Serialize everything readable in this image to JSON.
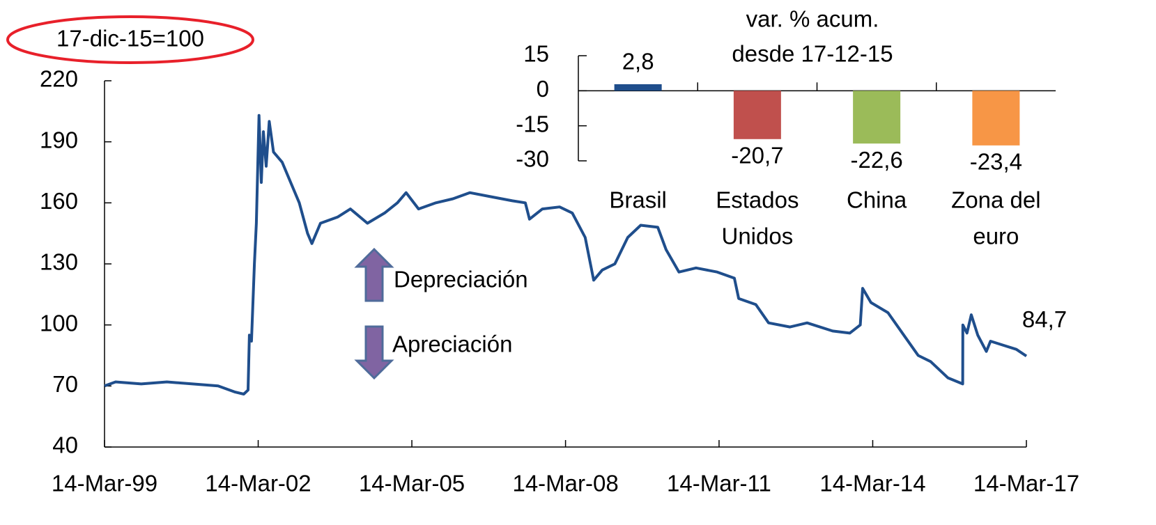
{
  "chart_data": [
    {
      "type": "line",
      "base_note": "17-dic-15=100",
      "arrow_labels": [
        "Depreciación",
        "Apreciación"
      ],
      "end_label": "84,7",
      "color": "#1f4e8c",
      "xlim": [
        "1999-03-14",
        "2017-03-14"
      ],
      "xticks": [
        {
          "value": "1999-03-14",
          "label": "14-Mar-99"
        },
        {
          "value": "2002-03-14",
          "label": "14-Mar-02"
        },
        {
          "value": "2005-03-14",
          "label": "14-Mar-05"
        },
        {
          "value": "2008-03-14",
          "label": "14-Mar-08"
        },
        {
          "value": "2011-03-14",
          "label": "14-Mar-11"
        },
        {
          "value": "2014-03-14",
          "label": "14-Mar-14"
        },
        {
          "value": "2017-03-14",
          "label": "14-Mar-17"
        }
      ],
      "ylim": [
        40,
        220
      ],
      "yticks": [
        40,
        70,
        100,
        130,
        160,
        190,
        220
      ],
      "x": [
        "1999-03-14",
        "1999-06-01",
        "1999-12-01",
        "2000-06-01",
        "2000-12-01",
        "2001-06-01",
        "2001-10-01",
        "2001-12-01",
        "2002-01-01",
        "2002-01-10",
        "2002-01-25",
        "2002-02-15",
        "2002-03-01",
        "2002-03-20",
        "2002-04-05",
        "2002-04-20",
        "2002-05-10",
        "2002-06-01",
        "2002-07-01",
        "2002-09-01",
        "2002-11-01",
        "2003-01-01",
        "2003-03-01",
        "2003-04-01",
        "2003-06-01",
        "2003-10-01",
        "2004-01-01",
        "2004-05-01",
        "2004-09-01",
        "2004-12-01",
        "2005-02-01",
        "2005-05-01",
        "2005-09-01",
        "2006-01-01",
        "2006-05-01",
        "2006-10-01",
        "2007-03-01",
        "2007-06-01",
        "2007-07-01",
        "2007-10-01",
        "2008-02-01",
        "2008-05-01",
        "2008-08-01",
        "2008-10-01",
        "2008-12-01",
        "2009-03-01",
        "2009-06-01",
        "2009-09-01",
        "2010-01-01",
        "2010-03-01",
        "2010-06-01",
        "2010-10-01",
        "2011-03-01",
        "2011-07-01",
        "2011-08-01",
        "2011-12-01",
        "2012-03-01",
        "2012-08-01",
        "2012-12-01",
        "2013-06-01",
        "2013-10-01",
        "2013-12-15",
        "2014-01-01",
        "2014-03-01",
        "2014-07-01",
        "2014-11-01",
        "2015-02-01",
        "2015-05-01",
        "2015-09-01",
        "2015-12-16",
        "2015-12-17",
        "2016-01-15",
        "2016-02-15",
        "2016-04-01",
        "2016-06-01",
        "2016-07-01",
        "2016-10-01",
        "2017-01-01",
        "2017-03-14"
      ],
      "values": [
        70,
        72,
        71,
        72,
        71,
        70,
        67,
        66,
        68,
        95,
        92,
        130,
        150,
        203,
        170,
        195,
        178,
        200,
        185,
        180,
        170,
        160,
        145,
        140,
        150,
        153,
        157,
        150,
        155,
        160,
        165,
        157,
        160,
        162,
        165,
        163,
        161,
        160,
        152,
        157,
        158,
        155,
        143,
        122,
        127,
        130,
        143,
        149,
        148,
        137,
        126,
        128,
        126,
        123,
        113,
        110,
        101,
        99,
        101,
        97,
        96,
        100,
        118,
        111,
        106,
        94,
        85,
        82,
        74,
        71,
        100,
        96,
        105,
        95,
        87,
        92,
        90,
        88,
        84.7
      ]
    },
    {
      "type": "bar",
      "title_lines": [
        "var. % acum.",
        "desde 17-12-15"
      ],
      "categories": [
        [
          "Brasil"
        ],
        [
          "Estados",
          "Unidos"
        ],
        [
          "China"
        ],
        [
          "Zona del",
          "euro"
        ]
      ],
      "values": [
        2.8,
        -20.7,
        -22.6,
        -23.4
      ],
      "value_labels": [
        "2,8",
        "-20,7",
        "-22,6",
        "-23,4"
      ],
      "colors": [
        "#1f4e8c",
        "#c0504d",
        "#9bbb59",
        "#f79646"
      ],
      "ylim": [
        -30,
        15
      ],
      "yticks": [
        15,
        0,
        -15,
        -30
      ]
    }
  ]
}
